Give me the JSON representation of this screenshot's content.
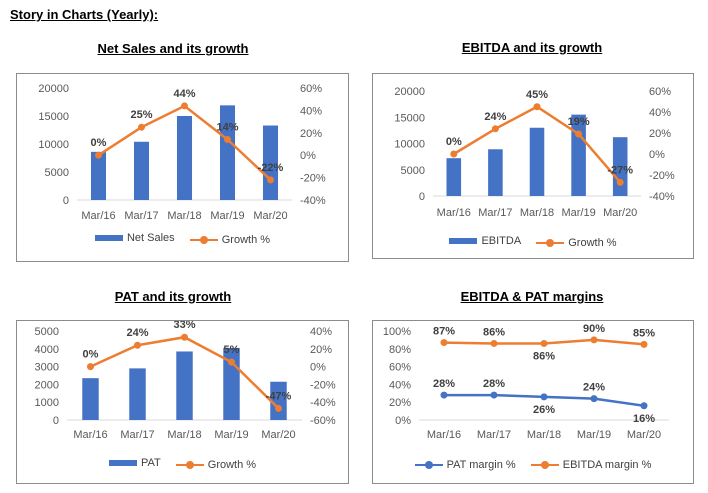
{
  "page": {
    "title": "Story in Charts (Yearly):"
  },
  "colors": {
    "bar": "#4472c4",
    "line": "#ed7d31",
    "axis": "#d9d9d9",
    "text": "#595959"
  },
  "charts": {
    "net_sales": {
      "heading": "Net Sales and its growth",
      "legend_bar": "Net Sales",
      "legend_line": "Growth %"
    },
    "ebitda": {
      "heading": "EBITDA and its growth",
      "legend_bar": "EBITDA",
      "legend_line": "Growth %"
    },
    "pat": {
      "heading": "PAT and its growth",
      "legend_bar": "PAT",
      "legend_line": "Growth %"
    },
    "margins": {
      "heading": "EBITDA & PAT margins",
      "legend_pat": "PAT margin %",
      "legend_ebitda": "EBITDA margin %"
    }
  },
  "chart_data": [
    {
      "id": "net_sales",
      "type": "bar+line",
      "title": "Net Sales and its growth",
      "categories": [
        "Mar/16",
        "Mar/17",
        "Mar/18",
        "Mar/19",
        "Mar/20"
      ],
      "series": [
        {
          "name": "Net Sales",
          "type": "bar",
          "axis": "left",
          "values": [
            8600,
            10400,
            15000,
            16900,
            13300
          ]
        },
        {
          "name": "Growth %",
          "type": "line",
          "axis": "right",
          "values": [
            0,
            25,
            44,
            14,
            -22
          ],
          "labels": [
            "0%",
            "25%",
            "44%",
            "14%",
            "-22%"
          ]
        }
      ],
      "left_axis": {
        "min": 0,
        "max": 20000,
        "step": 5000,
        "ticks": [
          "0",
          "5000",
          "10000",
          "15000",
          "20000"
        ]
      },
      "right_axis": {
        "min": -40,
        "max": 60,
        "step": 20,
        "ticks": [
          "-40%",
          "-20%",
          "0%",
          "20%",
          "40%",
          "60%"
        ]
      }
    },
    {
      "id": "ebitda",
      "type": "bar+line",
      "title": "EBITDA and its growth",
      "categories": [
        "Mar/16",
        "Mar/17",
        "Mar/18",
        "Mar/19",
        "Mar/20"
      ],
      "series": [
        {
          "name": "EBITDA",
          "type": "bar",
          "axis": "left",
          "values": [
            7200,
            8900,
            13000,
            15500,
            11200
          ]
        },
        {
          "name": "Growth %",
          "type": "line",
          "axis": "right",
          "values": [
            0,
            24,
            45,
            19,
            -27
          ],
          "labels": [
            "0%",
            "24%",
            "45%",
            "19%",
            "-27%"
          ]
        }
      ],
      "left_axis": {
        "min": 0,
        "max": 20000,
        "step": 5000,
        "ticks": [
          "0",
          "5000",
          "10000",
          "15000",
          "20000"
        ]
      },
      "right_axis": {
        "min": -40,
        "max": 60,
        "step": 20,
        "ticks": [
          "-40%",
          "-20%",
          "0%",
          "20%",
          "40%",
          "60%"
        ]
      }
    },
    {
      "id": "pat",
      "type": "bar+line",
      "title": "PAT and its growth",
      "categories": [
        "Mar/16",
        "Mar/17",
        "Mar/18",
        "Mar/19",
        "Mar/20"
      ],
      "series": [
        {
          "name": "PAT",
          "type": "bar",
          "axis": "left",
          "values": [
            2350,
            2900,
            3850,
            4050,
            2150
          ]
        },
        {
          "name": "Growth %",
          "type": "line",
          "axis": "right",
          "values": [
            0,
            24,
            33,
            5,
            -47
          ],
          "labels": [
            "0%",
            "24%",
            "33%",
            "5%",
            "-47%"
          ]
        }
      ],
      "left_axis": {
        "min": 0,
        "max": 5000,
        "step": 1000,
        "ticks": [
          "0",
          "1000",
          "2000",
          "3000",
          "4000",
          "5000"
        ]
      },
      "right_axis": {
        "min": -60,
        "max": 40,
        "step": 20,
        "ticks": [
          "-60%",
          "-40%",
          "-20%",
          "0%",
          "20%",
          "40%"
        ]
      }
    },
    {
      "id": "margins",
      "type": "line",
      "title": "EBITDA & PAT margins",
      "categories": [
        "Mar/16",
        "Mar/17",
        "Mar/18",
        "Mar/19",
        "Mar/20"
      ],
      "series": [
        {
          "name": "PAT margin %",
          "values": [
            28,
            28,
            26,
            24,
            16
          ],
          "labels": [
            "28%",
            "28%",
            "26%",
            "24%",
            "16%"
          ]
        },
        {
          "name": "EBITDA margin %",
          "values": [
            87,
            86,
            86,
            90,
            85
          ],
          "labels": [
            "87%",
            "86%",
            "86%",
            "90%",
            "85%"
          ]
        }
      ],
      "left_axis": {
        "min": 0,
        "max": 100,
        "step": 20,
        "ticks": [
          "0%",
          "20%",
          "40%",
          "60%",
          "80%",
          "100%"
        ]
      }
    }
  ]
}
